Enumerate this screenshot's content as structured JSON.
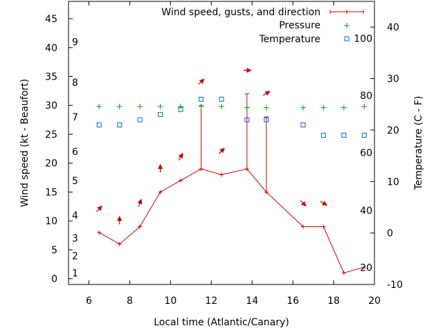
{
  "chart_data": {
    "type": "line",
    "title": "",
    "xlabel": "Local time (Atlantic/Canary)",
    "ylabel": "Wind speed (kt - Beaufort)",
    "y2label": "Temperature (C - F)",
    "xlim": [
      5,
      20
    ],
    "ylim": [
      -1,
      48
    ],
    "y2lim": [
      -10,
      45
    ],
    "x_ticks": [
      6,
      8,
      10,
      12,
      14,
      16,
      18,
      20
    ],
    "y_ticks": [
      0,
      5,
      10,
      15,
      20,
      25,
      30,
      35,
      40,
      45
    ],
    "y2_ticks": [
      -10,
      0,
      10,
      20,
      30,
      40
    ],
    "beaufort_ticks": [
      {
        "label": "1",
        "y": 1
      },
      {
        "label": "2",
        "y": 4
      },
      {
        "label": "3",
        "y": 7
      },
      {
        "label": "4",
        "y": 11
      },
      {
        "label": "5",
        "y": 17
      },
      {
        "label": "6",
        "y": 22
      },
      {
        "label": "7",
        "y": 28
      },
      {
        "label": "8",
        "y": 34
      },
      {
        "label": "9",
        "y": 41
      }
    ],
    "fahrenheit_ticks": [
      {
        "label": "20",
        "y2": -6.7
      },
      {
        "label": "40",
        "y2": 4.4
      },
      {
        "label": "60",
        "y2": 15.6
      },
      {
        "label": "80",
        "y2": 26.7
      },
      {
        "label": "100",
        "y2": 37.8
      }
    ],
    "legend_position": "top-right",
    "series": [
      {
        "name": "Wind speed, gusts, and direction",
        "color": "#cc0000",
        "x": [
          6.5,
          7.5,
          8.5,
          9.5,
          10.5,
          11.5,
          12.5,
          13.75,
          14.7,
          16.5,
          17.5,
          18.5,
          19.5
        ],
        "values": [
          8,
          6,
          9,
          15,
          17,
          19,
          18,
          19,
          15,
          9,
          9,
          1,
          2
        ],
        "gusts": [
          null,
          null,
          null,
          null,
          null,
          30,
          null,
          32,
          28,
          null,
          null,
          null,
          null
        ],
        "direction_deg": [
          225,
          180,
          200,
          180,
          210,
          225,
          225,
          270,
          240,
          315,
          300,
          null,
          null
        ]
      },
      {
        "name": "Pressure",
        "color": "#00a000",
        "marker": "plus",
        "x": [
          6.5,
          7.5,
          8.5,
          9.5,
          10.5,
          11.5,
          12.5,
          13.75,
          14.7,
          16.5,
          17.5,
          18.5,
          19.5
        ],
        "values": [
          29.8,
          29.8,
          29.8,
          29.8,
          29.8,
          29.8,
          29.8,
          29.6,
          29.6,
          29.6,
          29.6,
          29.6,
          29.8
        ]
      },
      {
        "name": "Temperature",
        "color": "#0066cc",
        "marker": "square",
        "axis": "y2",
        "x": [
          6.5,
          7.5,
          8.5,
          9.5,
          10.5,
          11.5,
          12.5,
          13.75,
          14.7,
          16.5,
          17.5,
          18.5,
          19.5
        ],
        "values": [
          21,
          21,
          22,
          23,
          24,
          26,
          26,
          22,
          22,
          21,
          19,
          19,
          19
        ]
      }
    ]
  }
}
